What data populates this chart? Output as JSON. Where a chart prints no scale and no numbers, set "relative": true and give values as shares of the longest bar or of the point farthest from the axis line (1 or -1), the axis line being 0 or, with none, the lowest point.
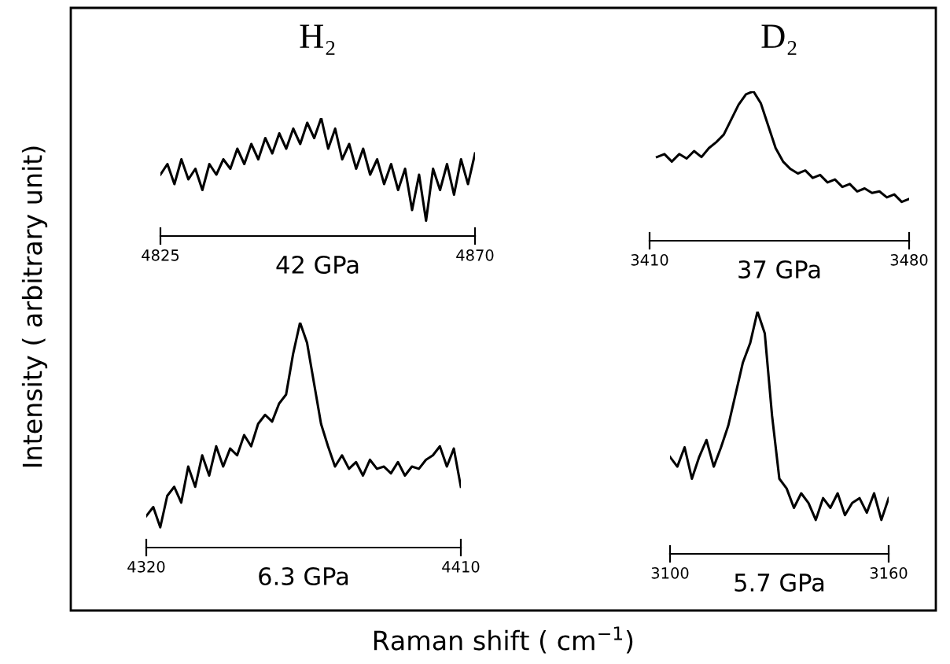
{
  "chart_data": [
    {
      "type": "line",
      "title": "H₂",
      "xlabel": "42 GPa",
      "ylabel": "Intensity ( arbitrary unit)",
      "annotations": [
        "Raman shift ( cm$^{−1}$)"
      ],
      "relative": true,
      "xlim": [
        4825,
        4870
      ],
      "xticks": [
        4825,
        4870
      ],
      "grid": false,
      "legend": false,
      "series": [
        {
          "color": "#000000",
          "x": [
            4825,
            4826,
            4827,
            4828,
            4829,
            4830,
            4831,
            4832,
            4833,
            4834,
            4835,
            4836,
            4837,
            4838,
            4839,
            4840,
            4841,
            4842,
            4843,
            4844,
            4845,
            4846,
            4847,
            4848,
            4849,
            4850,
            4851,
            4852,
            4853,
            4854,
            4855,
            4856,
            4857,
            4858,
            4859,
            4860,
            4861,
            4862,
            4863,
            4864,
            4865,
            4866,
            4867,
            4868,
            4869,
            4870
          ],
          "values": [
            0.52,
            0.61,
            0.44,
            0.65,
            0.48,
            0.57,
            0.39,
            0.61,
            0.52,
            0.65,
            0.57,
            0.74,
            0.61,
            0.78,
            0.65,
            0.83,
            0.7,
            0.87,
            0.74,
            0.91,
            0.78,
            0.96,
            0.83,
            1.0,
            0.74,
            0.91,
            0.65,
            0.78,
            0.57,
            0.74,
            0.52,
            0.65,
            0.44,
            0.61,
            0.39,
            0.57,
            0.22,
            0.52,
            0.13,
            0.57,
            0.39,
            0.61,
            0.35,
            0.65,
            0.44,
            0.7
          ]
        }
      ]
    },
    {
      "type": "line",
      "title": "D₂",
      "xlabel": "37 GPa",
      "relative": true,
      "xlim": [
        3410,
        3480
      ],
      "xticks": [
        3410,
        3480
      ],
      "grid": false,
      "legend": false,
      "series": [
        {
          "color": "#000000",
          "x": [
            3412,
            3414,
            3416,
            3418,
            3420,
            3422,
            3424,
            3426,
            3428,
            3430,
            3432,
            3434,
            3436,
            3438,
            3440,
            3442,
            3444,
            3446,
            3448,
            3450,
            3452,
            3454,
            3456,
            3458,
            3460,
            3462,
            3464,
            3466,
            3468,
            3470,
            3472,
            3474,
            3476,
            3478,
            3480
          ],
          "values": [
            0.56,
            0.58,
            0.53,
            0.58,
            0.55,
            0.6,
            0.56,
            0.62,
            0.66,
            0.71,
            0.81,
            0.91,
            0.98,
            1.0,
            0.92,
            0.77,
            0.62,
            0.53,
            0.48,
            0.45,
            0.47,
            0.42,
            0.44,
            0.39,
            0.41,
            0.36,
            0.38,
            0.33,
            0.35,
            0.32,
            0.33,
            0.29,
            0.31,
            0.26,
            0.28
          ]
        }
      ]
    },
    {
      "type": "line",
      "xlabel": "6.3 GPa",
      "relative": true,
      "xlim": [
        4320,
        4410
      ],
      "xticks": [
        4320,
        4410
      ],
      "grid": false,
      "legend": false,
      "series": [
        {
          "color": "#000000",
          "x": [
            4320,
            4322,
            4324,
            4326,
            4328,
            4330,
            4332,
            4334,
            4336,
            4338,
            4340,
            4342,
            4344,
            4346,
            4348,
            4350,
            4352,
            4354,
            4356,
            4358,
            4360,
            4362,
            4364,
            4366,
            4368,
            4370,
            4372,
            4374,
            4376,
            4378,
            4380,
            4382,
            4384,
            4386,
            4388,
            4390,
            4392,
            4394,
            4396,
            4398,
            4400,
            4402,
            4404,
            4406,
            4408,
            4410
          ],
          "values": [
            0.14,
            0.18,
            0.09,
            0.23,
            0.27,
            0.2,
            0.36,
            0.27,
            0.41,
            0.32,
            0.45,
            0.36,
            0.44,
            0.41,
            0.5,
            0.45,
            0.55,
            0.59,
            0.56,
            0.64,
            0.68,
            0.86,
            1.0,
            0.91,
            0.73,
            0.55,
            0.45,
            0.36,
            0.41,
            0.35,
            0.38,
            0.32,
            0.39,
            0.35,
            0.36,
            0.33,
            0.38,
            0.32,
            0.36,
            0.35,
            0.39,
            0.41,
            0.45,
            0.36,
            0.44,
            0.27
          ]
        }
      ]
    },
    {
      "type": "line",
      "xlabel": "5.7 GPa",
      "relative": true,
      "xlim": [
        3100,
        3160
      ],
      "xticks": [
        3100,
        3160
      ],
      "grid": false,
      "legend": false,
      "series": [
        {
          "color": "#000000",
          "x": [
            3100,
            3102,
            3104,
            3106,
            3108,
            3110,
            3112,
            3114,
            3116,
            3118,
            3120,
            3122,
            3124,
            3126,
            3128,
            3130,
            3132,
            3134,
            3136,
            3138,
            3140,
            3142,
            3144,
            3146,
            3148,
            3150,
            3152,
            3154,
            3156,
            3158,
            3160
          ],
          "values": [
            0.4,
            0.36,
            0.44,
            0.31,
            0.4,
            0.47,
            0.36,
            0.44,
            0.53,
            0.66,
            0.79,
            0.87,
            1.0,
            0.91,
            0.57,
            0.31,
            0.27,
            0.19,
            0.25,
            0.21,
            0.14,
            0.23,
            0.19,
            0.25,
            0.16,
            0.21,
            0.23,
            0.17,
            0.25,
            0.14,
            0.23
          ]
        }
      ]
    }
  ]
}
